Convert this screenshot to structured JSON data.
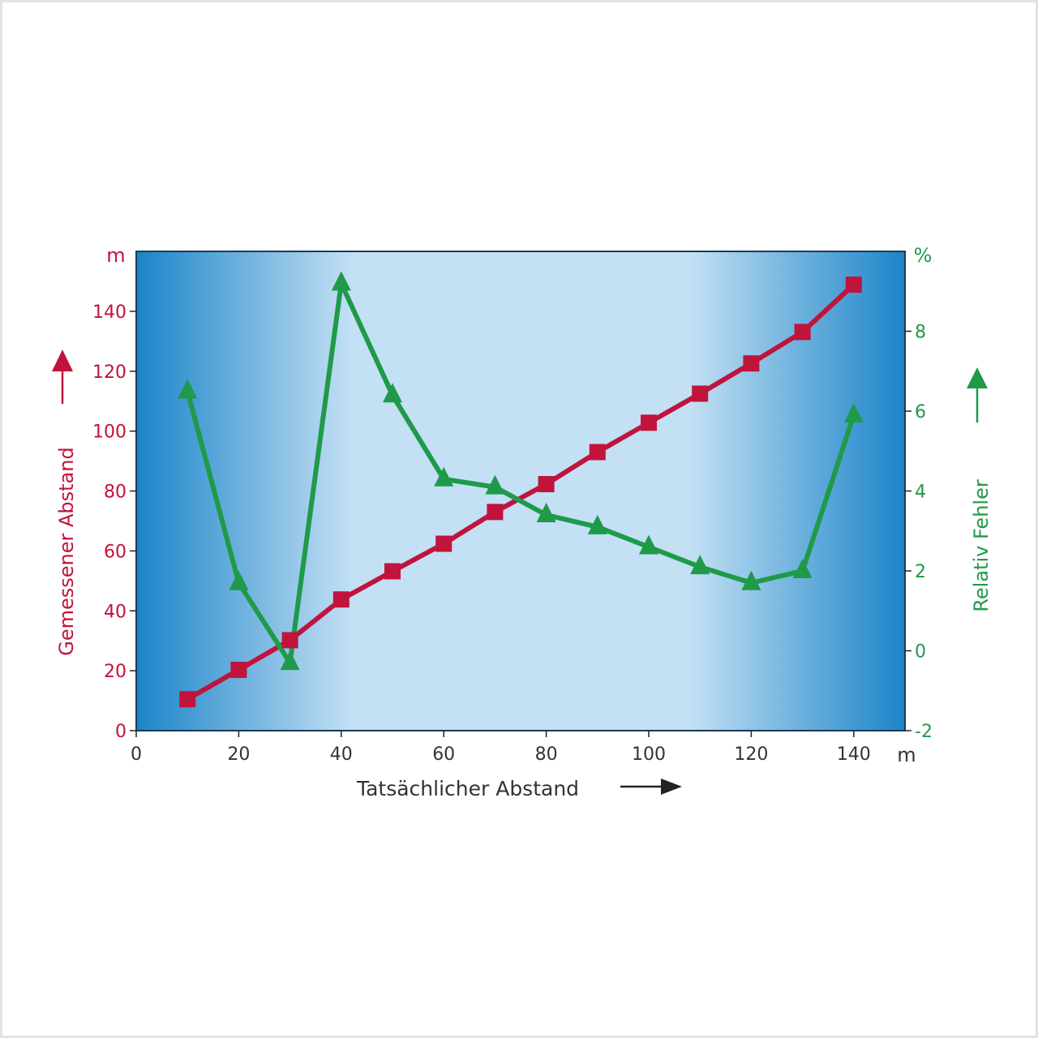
{
  "colors": {
    "measured": "#c0143c",
    "error": "#1f9a49",
    "x_text": "#333333",
    "plot_edge": "#1b84c8",
    "plot_center": "#c3e0f4"
  },
  "chart_data": {
    "type": "line",
    "xlabel": "Tatsächlicher Abstand",
    "x_unit": "m",
    "xlim": [
      0,
      150
    ],
    "x_ticks": [
      0,
      20,
      40,
      60,
      80,
      100,
      120,
      140
    ],
    "y_left": {
      "label": "Gemessener Abstand",
      "unit": "m",
      "lim": [
        0,
        160
      ],
      "ticks": [
        0,
        20,
        40,
        60,
        80,
        100,
        120,
        140
      ]
    },
    "y_right": {
      "label": "Relativ Fehler",
      "unit": "%",
      "lim": [
        -2,
        10
      ],
      "ticks": [
        -2,
        0,
        2,
        4,
        6,
        8
      ]
    },
    "series": [
      {
        "axis": "left",
        "marker": "square",
        "x": [
          10,
          20,
          30,
          40,
          50,
          60,
          70,
          80,
          90,
          100,
          110,
          120,
          130,
          140
        ],
        "values": [
          10.5,
          20.3,
          30.2,
          43.8,
          53.2,
          62.4,
          73,
          82.3,
          93,
          102.8,
          112.5,
          122.6,
          133.1,
          148.9
        ]
      },
      {
        "axis": "right",
        "marker": "triangle",
        "x": [
          10,
          20,
          30,
          40,
          50,
          60,
          70,
          80,
          90,
          100,
          110,
          120,
          130,
          140
        ],
        "values": [
          6.5,
          1.7,
          -0.3,
          9.2,
          6.4,
          4.3,
          4.1,
          3.4,
          3.1,
          2.6,
          2.1,
          1.7,
          2.0,
          5.9
        ]
      }
    ]
  }
}
